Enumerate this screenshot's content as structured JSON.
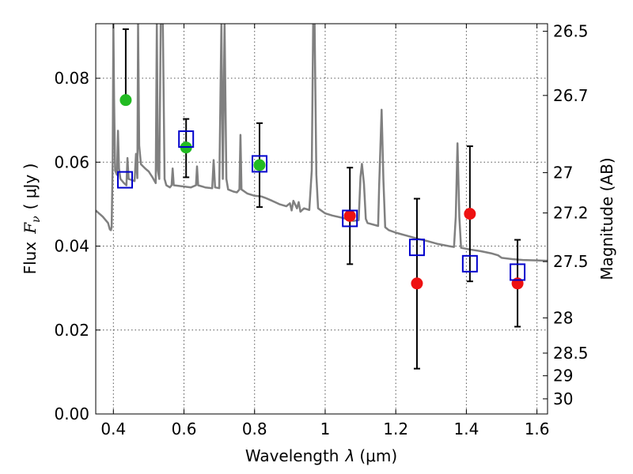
{
  "chart_data": {
    "type": "scatter",
    "xlabel_prefix": "Wavelength",
    "xlabel_symbol": "λ",
    "xlabel_unit": "(μm)",
    "ylabel_prefix": "Flux",
    "ylabel_symbol": "F",
    "ylabel_sub": "ν",
    "ylabel_unit": "( μJy )",
    "y2label": "Magnitude (AB)",
    "xlim": [
      0.35,
      1.63
    ],
    "ylim": [
      0.0,
      0.093
    ],
    "x_ticks": [
      0.4,
      0.6,
      0.8,
      1.0,
      1.2,
      1.4,
      1.6
    ],
    "x_tick_labels": [
      "0.4",
      "0.6",
      "0.8",
      "1",
      "1.2",
      "1.4",
      "1.6"
    ],
    "y_ticks": [
      0.0,
      0.02,
      0.04,
      0.06,
      0.08
    ],
    "y_tick_labels": [
      "0.00",
      "0.02",
      "0.04",
      "0.06",
      "0.08"
    ],
    "y2_ticks": [
      {
        "flux": 0.0912,
        "label": "26.5"
      },
      {
        "flux": 0.0759,
        "label": "26.7"
      },
      {
        "flux": 0.0575,
        "label": "27"
      },
      {
        "flux": 0.0479,
        "label": "27.2"
      },
      {
        "flux": 0.0363,
        "label": "27.5"
      },
      {
        "flux": 0.0229,
        "label": "28"
      },
      {
        "flux": 0.0145,
        "label": "28.5"
      },
      {
        "flux": 0.0091,
        "label": "29"
      },
      {
        "flux": 0.0036,
        "label": "30"
      }
    ],
    "grid": true,
    "colors": {
      "spectrum": "#808080",
      "model_photometry": "#0000cc",
      "optical_photometry": "#22bb22",
      "nir_photometry": "#ee1111",
      "errorbar": "#000000"
    },
    "series": [
      {
        "kind": "observed",
        "color": "#22bb22",
        "points": [
          {
            "x": 0.435,
            "y": 0.0748,
            "yerr_lo": 0.0748,
            "yerr_hi": 0.0917
          },
          {
            "x": 0.606,
            "y": 0.0635,
            "yerr_lo": 0.0564,
            "yerr_hi": 0.0703
          },
          {
            "x": 0.814,
            "y": 0.0593,
            "yerr_lo": 0.0493,
            "yerr_hi": 0.0693
          }
        ]
      },
      {
        "kind": "observed",
        "color": "#ee1111",
        "points": [
          {
            "x": 1.07,
            "y": 0.0472,
            "yerr_lo": 0.0357,
            "yerr_hi": 0.0587
          },
          {
            "x": 1.26,
            "y": 0.0311,
            "yerr_lo": 0.0108,
            "yerr_hi": 0.0513
          },
          {
            "x": 1.41,
            "y": 0.0477,
            "yerr_lo": 0.0316,
            "yerr_hi": 0.0638
          },
          {
            "x": 1.545,
            "y": 0.0311,
            "yerr_lo": 0.0208,
            "yerr_hi": 0.0415
          }
        ]
      },
      {
        "kind": "model",
        "color": "#0000cc",
        "points": [
          {
            "x": 0.433,
            "y": 0.0558
          },
          {
            "x": 0.606,
            "y": 0.0655
          },
          {
            "x": 0.814,
            "y": 0.0596
          },
          {
            "x": 1.07,
            "y": 0.0466
          },
          {
            "x": 1.26,
            "y": 0.0397
          },
          {
            "x": 1.41,
            "y": 0.0358
          },
          {
            "x": 1.545,
            "y": 0.0338
          }
        ]
      }
    ],
    "spectrum": [
      [
        0.35,
        0.0485
      ],
      [
        0.37,
        0.047
      ],
      [
        0.385,
        0.0455
      ],
      [
        0.39,
        0.044
      ],
      [
        0.393,
        0.0438
      ],
      [
        0.395,
        0.0445
      ],
      [
        0.398,
        0.06
      ],
      [
        0.4,
        0.093
      ],
      [
        0.402,
        0.075
      ],
      [
        0.405,
        0.058
      ],
      [
        0.41,
        0.057
      ],
      [
        0.413,
        0.0675
      ],
      [
        0.416,
        0.0585
      ],
      [
        0.42,
        0.056
      ],
      [
        0.43,
        0.055
      ],
      [
        0.437,
        0.0545
      ],
      [
        0.44,
        0.061
      ],
      [
        0.443,
        0.056
      ],
      [
        0.46,
        0.0555
      ],
      [
        0.464,
        0.062
      ],
      [
        0.468,
        0.0562
      ],
      [
        0.47,
        0.093
      ],
      [
        0.473,
        0.064
      ],
      [
        0.478,
        0.0595
      ],
      [
        0.49,
        0.0585
      ],
      [
        0.5,
        0.0578
      ],
      [
        0.51,
        0.0565
      ],
      [
        0.52,
        0.055
      ],
      [
        0.523,
        0.093
      ],
      [
        0.526,
        0.058
      ],
      [
        0.53,
        0.056
      ],
      [
        0.534,
        0.093
      ],
      [
        0.54,
        0.093
      ],
      [
        0.545,
        0.056
      ],
      [
        0.55,
        0.0545
      ],
      [
        0.56,
        0.054
      ],
      [
        0.565,
        0.0545
      ],
      [
        0.568,
        0.0585
      ],
      [
        0.571,
        0.0545
      ],
      [
        0.6,
        0.0542
      ],
      [
        0.62,
        0.054
      ],
      [
        0.634,
        0.0545
      ],
      [
        0.637,
        0.059
      ],
      [
        0.64,
        0.0545
      ],
      [
        0.66,
        0.054
      ],
      [
        0.68,
        0.0538
      ],
      [
        0.684,
        0.0605
      ],
      [
        0.688,
        0.054
      ],
      [
        0.7,
        0.0538
      ],
      [
        0.706,
        0.093
      ],
      [
        0.71,
        0.056
      ],
      [
        0.715,
        0.093
      ],
      [
        0.72,
        0.056
      ],
      [
        0.725,
        0.0535
      ],
      [
        0.74,
        0.053
      ],
      [
        0.75,
        0.0528
      ],
      [
        0.757,
        0.0535
      ],
      [
        0.76,
        0.0665
      ],
      [
        0.763,
        0.0535
      ],
      [
        0.78,
        0.0525
      ],
      [
        0.8,
        0.052
      ],
      [
        0.82,
        0.0518
      ],
      [
        0.83,
        0.0515
      ],
      [
        0.85,
        0.0508
      ],
      [
        0.87,
        0.05
      ],
      [
        0.89,
        0.0495
      ],
      [
        0.9,
        0.0502
      ],
      [
        0.905,
        0.0485
      ],
      [
        0.91,
        0.0508
      ],
      [
        0.92,
        0.049
      ],
      [
        0.925,
        0.0505
      ],
      [
        0.93,
        0.0482
      ],
      [
        0.94,
        0.049
      ],
      [
        0.955,
        0.0486
      ],
      [
        0.962,
        0.058
      ],
      [
        0.966,
        0.093
      ],
      [
        0.97,
        0.093
      ],
      [
        0.975,
        0.057
      ],
      [
        0.98,
        0.049
      ],
      [
        1.0,
        0.0478
      ],
      [
        1.02,
        0.0473
      ],
      [
        1.05,
        0.0467
      ],
      [
        1.08,
        0.046
      ],
      [
        1.095,
        0.0462
      ],
      [
        1.1,
        0.0565
      ],
      [
        1.104,
        0.0596
      ],
      [
        1.11,
        0.0548
      ],
      [
        1.115,
        0.0465
      ],
      [
        1.12,
        0.0455
      ],
      [
        1.15,
        0.0448
      ],
      [
        1.153,
        0.0545
      ],
      [
        1.16,
        0.0725
      ],
      [
        1.165,
        0.0555
      ],
      [
        1.17,
        0.0445
      ],
      [
        1.18,
        0.0438
      ],
      [
        1.2,
        0.0432
      ],
      [
        1.23,
        0.0425
      ],
      [
        1.26,
        0.0418
      ],
      [
        1.29,
        0.0412
      ],
      [
        1.32,
        0.0405
      ],
      [
        1.35,
        0.04
      ],
      [
        1.365,
        0.0398
      ],
      [
        1.37,
        0.047
      ],
      [
        1.375,
        0.0645
      ],
      [
        1.38,
        0.047
      ],
      [
        1.385,
        0.0396
      ],
      [
        1.41,
        0.0392
      ],
      [
        1.44,
        0.0388
      ],
      [
        1.47,
        0.0383
      ],
      [
        1.49,
        0.0378
      ],
      [
        1.5,
        0.0372
      ],
      [
        1.53,
        0.0369
      ],
      [
        1.56,
        0.0367
      ],
      [
        1.6,
        0.0366
      ],
      [
        1.63,
        0.0365
      ]
    ]
  }
}
